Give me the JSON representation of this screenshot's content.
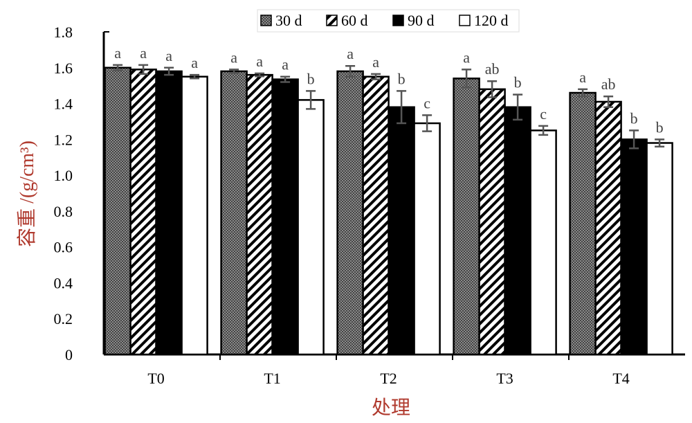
{
  "chart_data": {
    "type": "bar",
    "xlabel": "处理",
    "ylabel": "容重 /(g/cm³)",
    "ylim": [
      0,
      1.8
    ],
    "yticks": [
      "0",
      "0.2",
      "0.4",
      "0.6",
      "0.8",
      "1.0",
      "1.2",
      "1.4",
      "1.6",
      "1.8"
    ],
    "categories": [
      "T0",
      "T1",
      "T2",
      "T3",
      "T4"
    ],
    "legend_position": "top",
    "series": [
      {
        "name": "30 d",
        "pattern": "dots",
        "values": [
          1.6,
          1.58,
          1.58,
          1.54,
          1.46
        ],
        "errors": [
          0.015,
          0.01,
          0.03,
          0.05,
          0.02
        ],
        "labels": [
          "a",
          "a",
          "a",
          "a",
          "a"
        ]
      },
      {
        "name": "60 d",
        "pattern": "hatch",
        "values": [
          1.59,
          1.56,
          1.55,
          1.48,
          1.41
        ],
        "errors": [
          0.025,
          0.008,
          0.015,
          0.045,
          0.03
        ],
        "labels": [
          "a",
          "a",
          "a",
          "ab",
          "ab"
        ]
      },
      {
        "name": "90 d",
        "pattern": "black",
        "values": [
          1.58,
          1.535,
          1.38,
          1.38,
          1.2
        ],
        "errors": [
          0.02,
          0.015,
          0.09,
          0.07,
          0.05
        ],
        "labels": [
          "a",
          "a",
          "b",
          "b",
          "b"
        ]
      },
      {
        "name": "120 d",
        "pattern": "white",
        "values": [
          1.55,
          1.42,
          1.29,
          1.25,
          1.18
        ],
        "errors": [
          0.01,
          0.05,
          0.045,
          0.025,
          0.02
        ],
        "labels": [
          "a",
          "b",
          "c",
          "c",
          "b"
        ]
      }
    ]
  }
}
